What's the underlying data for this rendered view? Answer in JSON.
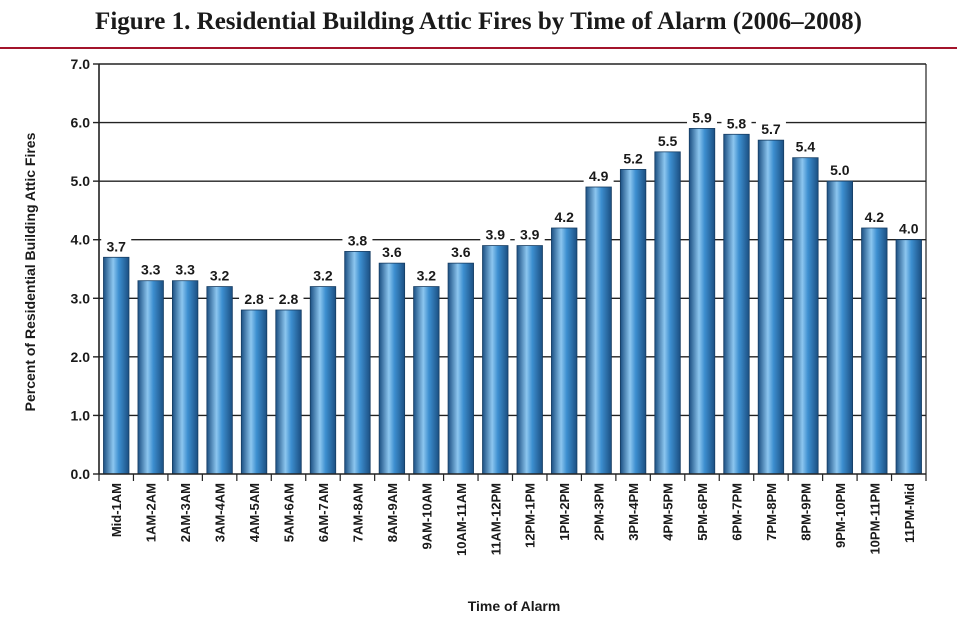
{
  "chart_data": {
    "type": "bar",
    "title": "Figure 1.  Residential Building Attic Fires by Time of Alarm (2006–2008)",
    "xlabel": "Time of Alarm",
    "ylabel": "Percent of Residential Building Attic Fires",
    "ylim": [
      0,
      7
    ],
    "yticks": [
      "0.0",
      "1.0",
      "2.0",
      "3.0",
      "4.0",
      "5.0",
      "6.0",
      "7.0"
    ],
    "grid": true,
    "categories": [
      "Mid-1AM",
      "1AM-2AM",
      "2AM-3AM",
      "3AM-4AM",
      "4AM-5AM",
      "5AM-6AM",
      "6AM-7AM",
      "7AM-8AM",
      "8AM-9AM",
      "9AM-10AM",
      "10AM-11AM",
      "11AM-12PM",
      "12PM-1PM",
      "1PM-2PM",
      "2PM-3PM",
      "3PM-4PM",
      "4PM-5PM",
      "5PM-6PM",
      "6PM-7PM",
      "7PM-8PM",
      "8PM-9PM",
      "9PM-10PM",
      "10PM-11PM",
      "11PM-Mid"
    ],
    "values": [
      3.7,
      3.3,
      3.3,
      3.2,
      2.8,
      2.8,
      3.2,
      3.8,
      3.6,
      3.2,
      3.6,
      3.9,
      3.9,
      4.2,
      4.9,
      5.2,
      5.5,
      5.9,
      5.8,
      5.7,
      5.4,
      5.0,
      4.2,
      4.0
    ],
    "value_labels": [
      "3.7",
      "3.3",
      "3.3",
      "3.2",
      "2.8",
      "2.8",
      "3.2",
      "3.8",
      "3.6",
      "3.2",
      "3.6",
      "3.9",
      "3.9",
      "4.2",
      "4.9",
      "5.2",
      "5.5",
      "5.9",
      "5.8",
      "5.7",
      "5.4",
      "5.0",
      "4.2",
      "4.0"
    ],
    "colors": {
      "bar_dark": "#1b4f82",
      "bar_mid": "#3d8fd0",
      "bar_light": "#8cc6ef",
      "title_rule": "#a3142b",
      "text": "#1a1a1a"
    }
  }
}
